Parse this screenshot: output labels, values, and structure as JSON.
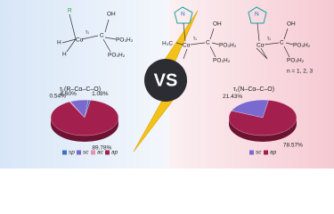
{
  "chart_data": [
    {
      "type": "pie",
      "title": "τ₁(R–Cα–C–O)",
      "categories": [
        "sp",
        "sc",
        "ac",
        "ap"
      ],
      "values": [
        1.08,
        8.6,
        0.54,
        89.78
      ],
      "value_labels": [
        "1.08%",
        "8.60%",
        "0.54%",
        "89.78%"
      ],
      "colors": [
        "#3d6fc4",
        "#7a6ad0",
        "#e890b0",
        "#a3204e"
      ]
    },
    {
      "type": "pie",
      "title": "τ₁(N–Cα–C–O)",
      "categories": [
        "sc",
        "ap"
      ],
      "values": [
        21.43,
        78.57
      ],
      "value_labels": [
        "21.43%",
        "78.57%"
      ],
      "colors": [
        "#7a6ad0",
        "#a3204e"
      ]
    }
  ],
  "center_text": "VS",
  "left_structure": [
    "R",
    "H",
    "H",
    "Cα",
    "C",
    "OH",
    "PO₃H₂",
    "PO₃H₂",
    "τ₁"
  ],
  "middle_structure": [
    "N",
    "H₃C",
    "Cα",
    "C",
    "OH",
    "PO₃H₂",
    "PO₃H₂",
    "τ₁"
  ],
  "right_structure": [
    "N",
    "Cα",
    "C",
    "OH",
    "PO₃H₂",
    "PO₃H₂",
    "τ₁",
    "n = 1, 2, 3"
  ]
}
